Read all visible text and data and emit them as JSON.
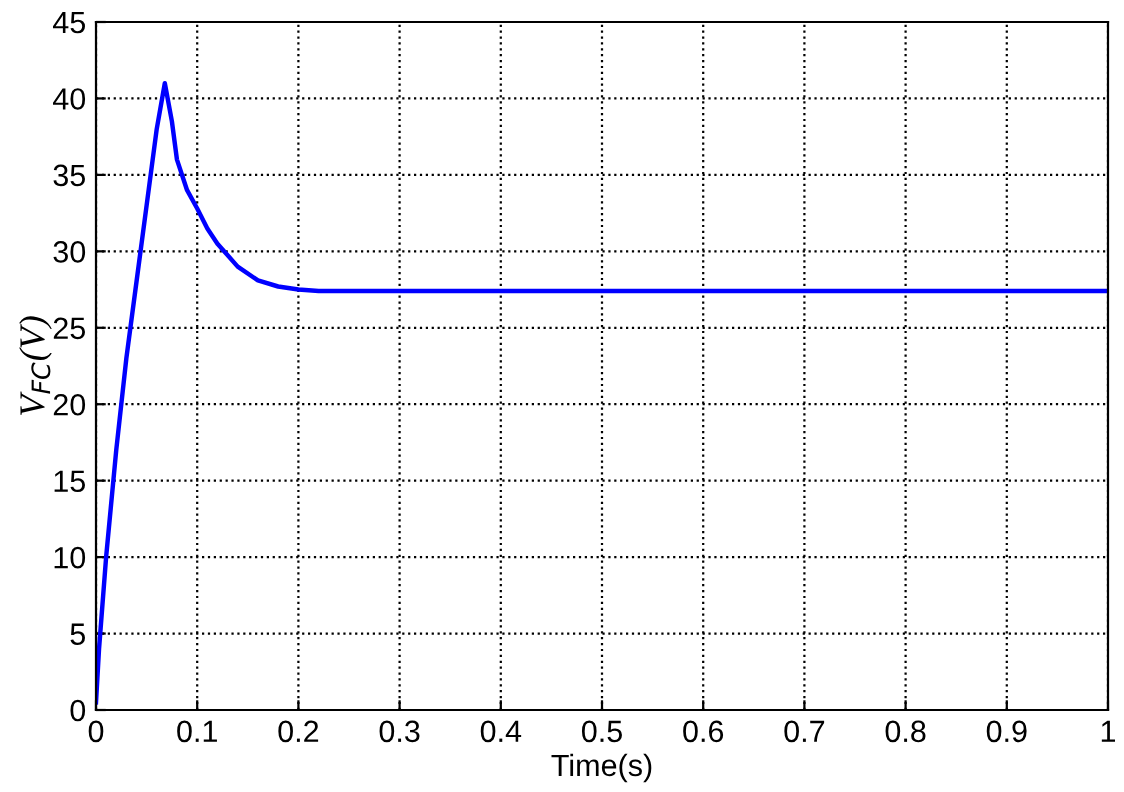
{
  "chart_data": {
    "type": "line",
    "xlabel": "Time(s)",
    "ylabel": "V$_{FC}$(V)",
    "x": [
      0,
      0.003,
      0.01,
      0.02,
      0.03,
      0.04,
      0.05,
      0.06,
      0.068,
      0.075,
      0.08,
      0.09,
      0.1,
      0.11,
      0.12,
      0.14,
      0.16,
      0.18,
      0.2,
      0.22,
      0.25,
      0.3,
      0.5,
      1
    ],
    "series": [
      {
        "color": "#0000ff",
        "values": [
          0.5,
          4,
          10,
          17,
          23,
          28,
          33,
          38,
          41,
          38.5,
          36,
          34,
          32.8,
          31.5,
          30.5,
          29,
          28.1,
          27.7,
          27.5,
          27.4,
          27.4,
          27.4,
          27.4,
          27.4
        ]
      }
    ],
    "xlim": [
      0,
      1
    ],
    "xticks": [
      0,
      0.1,
      0.2,
      0.3,
      0.4,
      0.5,
      0.6,
      0.7,
      0.8,
      0.9,
      1
    ],
    "ylim": [
      0,
      45
    ],
    "yticks": [
      0,
      5,
      10,
      15,
      20,
      25,
      30,
      35,
      40,
      45
    ],
    "grid": true,
    "line_style": "solid",
    "marker": "none"
  }
}
